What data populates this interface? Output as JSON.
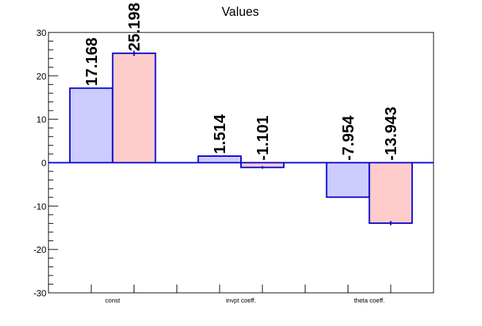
{
  "chart_data": {
    "type": "bar",
    "title": "Values",
    "categories": [
      "const",
      "invpt coeff.",
      "theta coeff."
    ],
    "series": [
      {
        "values": [
          17.168,
          1.514,
          -7.954
        ],
        "errors": [
          0.0,
          0.0,
          0.0
        ],
        "labels": [
          "17.168",
          "1.514",
          "-7.954"
        ]
      },
      {
        "values": [
          25.198,
          -1.101,
          -13.943
        ],
        "errors": [
          0.6,
          0.3,
          0.5
        ],
        "labels": [
          "25.198",
          "-1.101",
          "-13.943"
        ]
      }
    ],
    "ylim": [
      -30,
      30
    ],
    "yticks": [
      "-30",
      "-20",
      "-10",
      "0",
      "10",
      "20",
      "30"
    ],
    "grid": false,
    "colors": {
      "series1_fill": "#ccccff",
      "series2_fill": "#ffcccc",
      "edge": "#0000cc",
      "zero_line": "#0000cc"
    }
  }
}
